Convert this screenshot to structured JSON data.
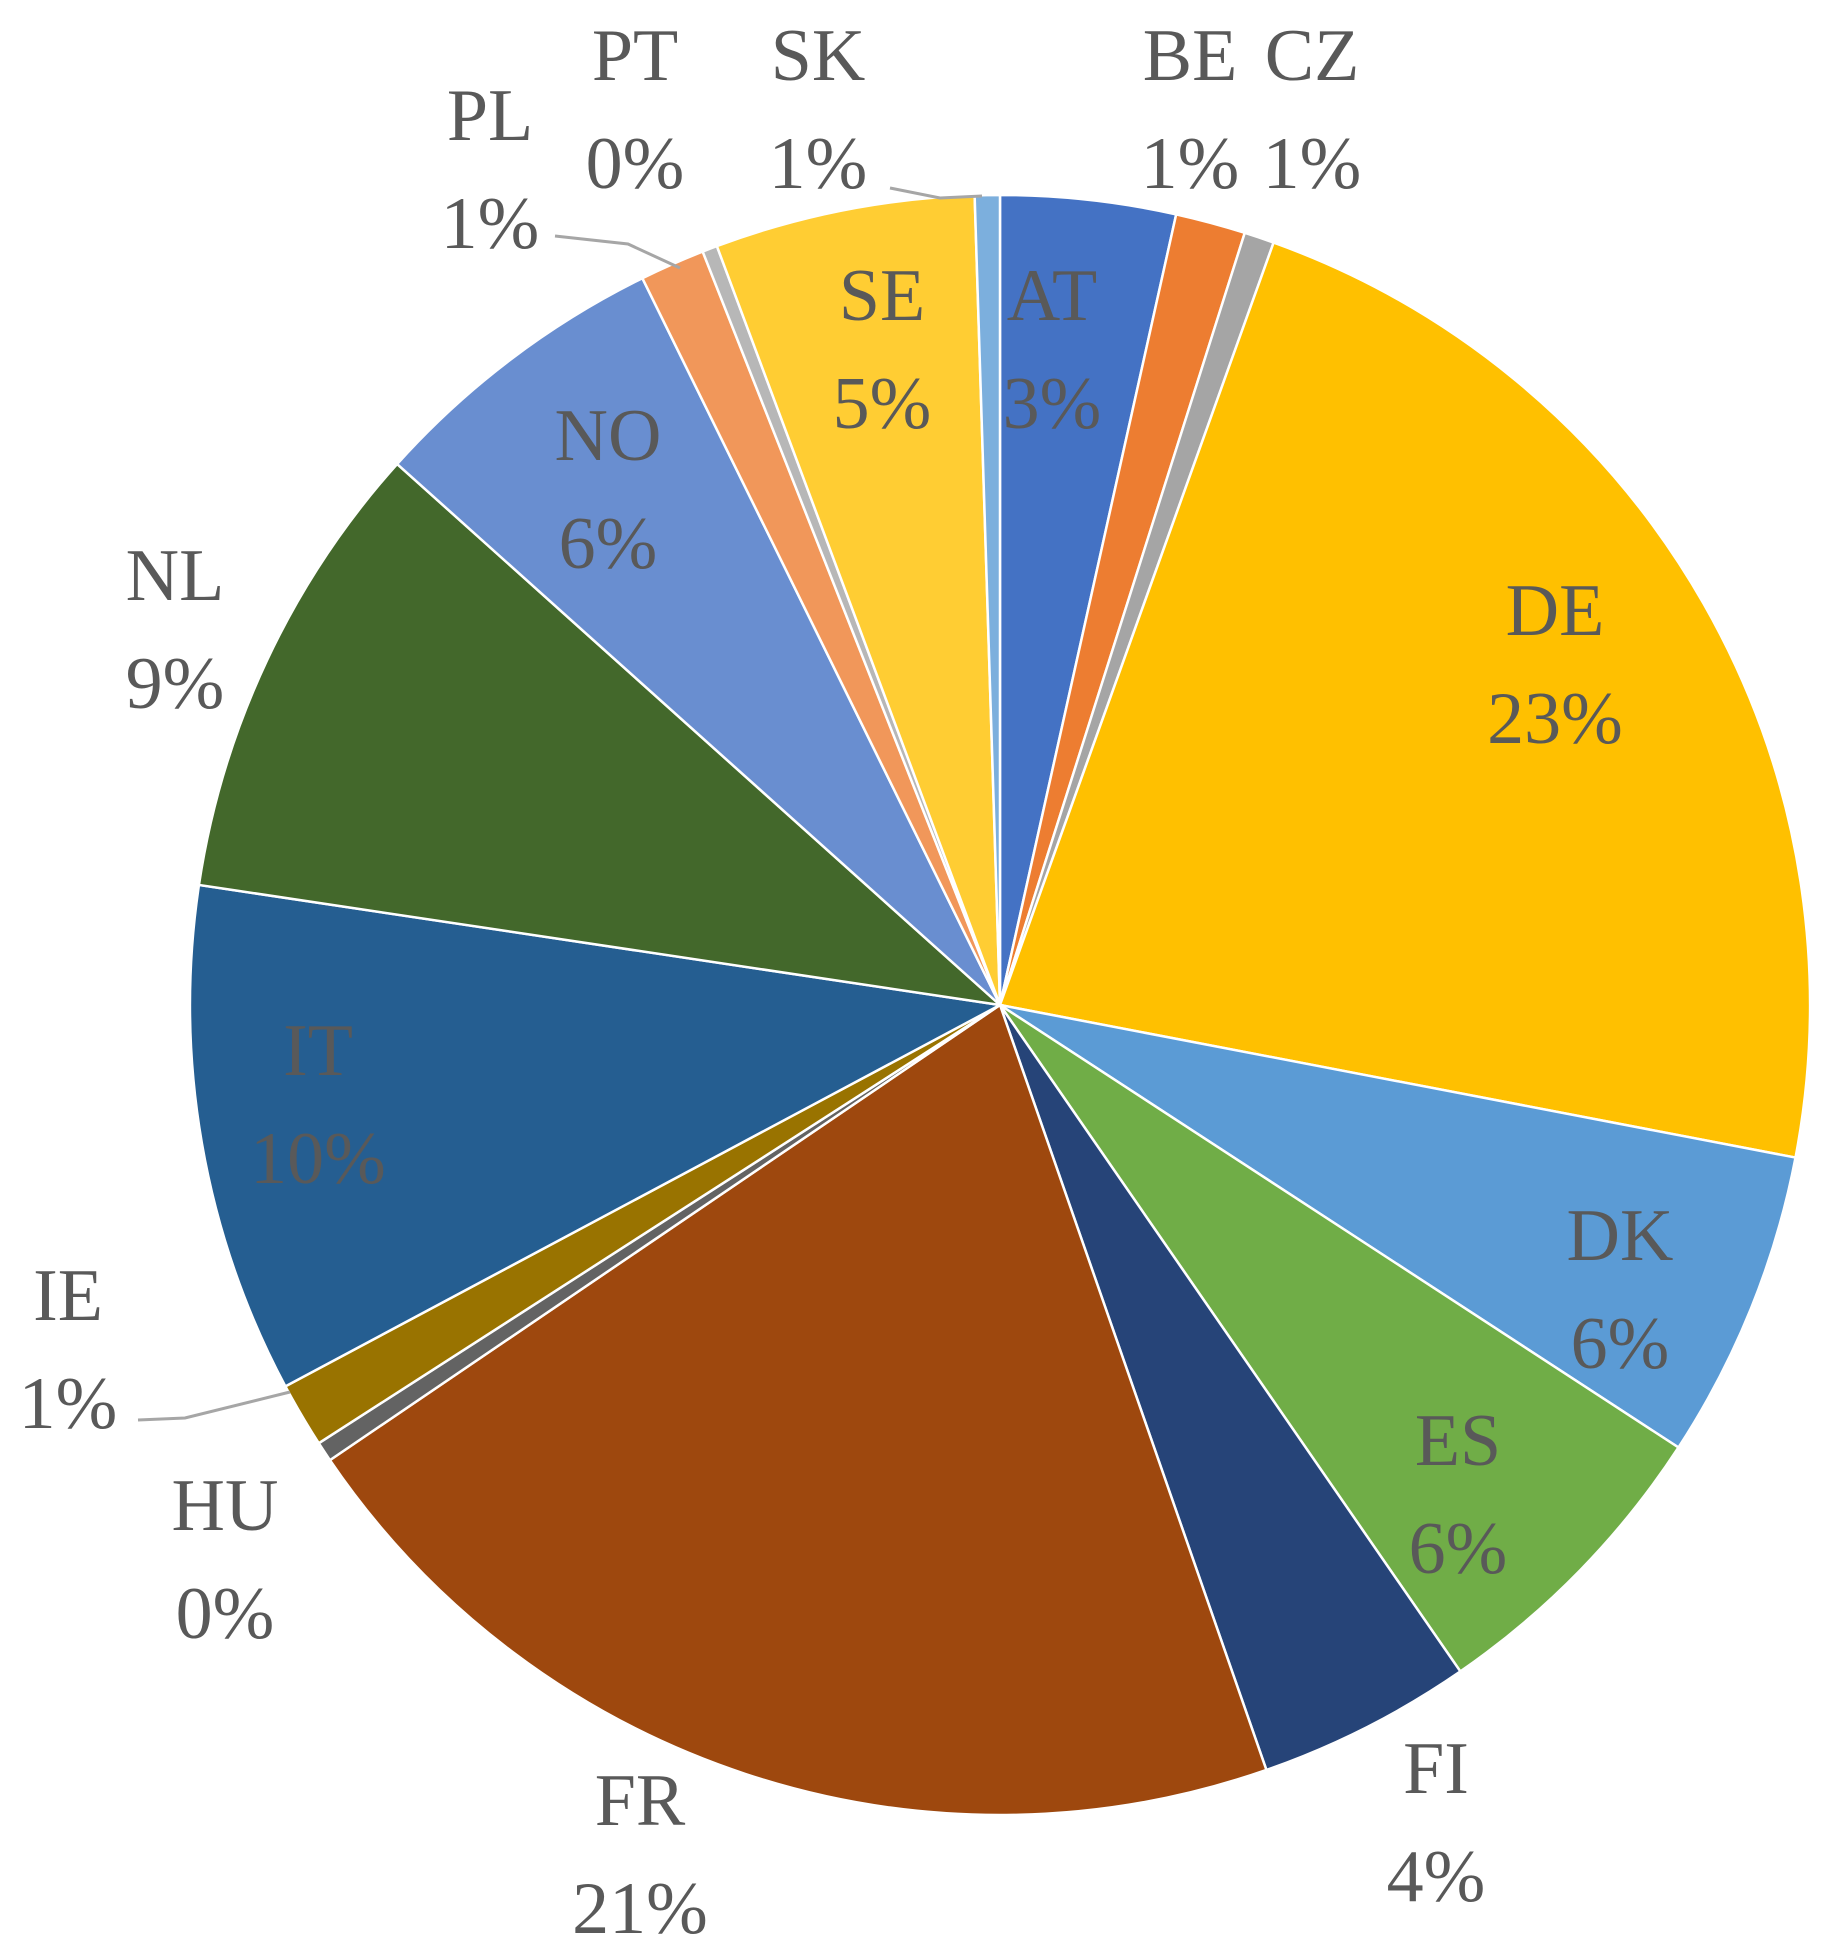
{
  "chart_data": {
    "type": "pie",
    "legend": "none",
    "data_labels": "category and percentage",
    "slices": [
      {
        "label": "AT",
        "value": 3.5,
        "display": "3%",
        "color": "#4472C4"
      },
      {
        "label": "BE",
        "value": 1.4,
        "display": "1%",
        "color": "#ED7D31"
      },
      {
        "label": "CZ",
        "value": 0.6,
        "display": "1%",
        "color": "#A5A5A5"
      },
      {
        "label": "DE",
        "value": 22.6,
        "display": "23%",
        "color": "#FFC000"
      },
      {
        "label": "DK",
        "value": 6.2,
        "display": "6%",
        "color": "#5B9BD5"
      },
      {
        "label": "ES",
        "value": 6.2,
        "display": "6%",
        "color": "#70AD47"
      },
      {
        "label": "FI",
        "value": 4.3,
        "display": "4%",
        "color": "#264478"
      },
      {
        "label": "FR",
        "value": 20.9,
        "display": "21%",
        "color": "#9E480E"
      },
      {
        "label": "HU",
        "value": 0.4,
        "display": "0%",
        "color": "#636363"
      },
      {
        "label": "IE",
        "value": 1.3,
        "display": "1%",
        "color": "#997300"
      },
      {
        "label": "IT",
        "value": 10.2,
        "display": "10%",
        "color": "#255E91"
      },
      {
        "label": "NL",
        "value": 9.3,
        "display": "9%",
        "color": "#43682B"
      },
      {
        "label": "NO",
        "value": 6.1,
        "display": "6%",
        "color": "#698ED0"
      },
      {
        "label": "PL",
        "value": 1.3,
        "display": "1%",
        "color": "#F1975A"
      },
      {
        "label": "PT",
        "value": 0.3,
        "display": "0%",
        "color": "#B7B7B7"
      },
      {
        "label": "SE",
        "value": 5.2,
        "display": "5%",
        "color": "#FFCD33"
      },
      {
        "label": "SK",
        "value": 0.5,
        "display": "1%",
        "color": "#7CAFDD"
      }
    ]
  }
}
